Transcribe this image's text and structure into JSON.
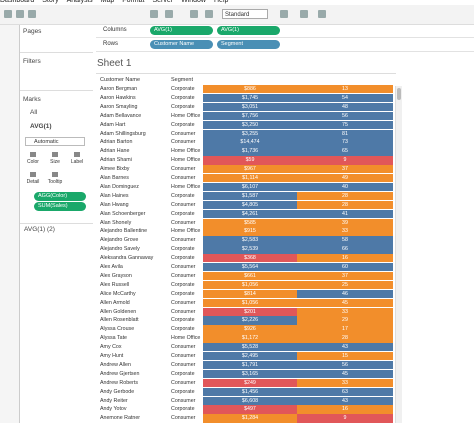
{
  "menu": [
    "Dashboard",
    "Story",
    "Analysis",
    "Map",
    "Format",
    "Server",
    "Window",
    "Help"
  ],
  "toolbar": {
    "mark_size": "Standard"
  },
  "left_panel": {
    "pages": "Pages",
    "filters": "Filters",
    "marks": "Marks",
    "marks_all": "All",
    "marks_card": "AVG(1)",
    "mark_type": "Automatic",
    "buttons": [
      "Color",
      "Size",
      "Label",
      "Detail",
      "Tooltip"
    ],
    "pills": [
      "AGG(Color)",
      "SUM(Sales)"
    ],
    "second_card": "AVG(1) (2)"
  },
  "shelves": {
    "columns_label": "Columns",
    "columns": [
      "AVG(1)",
      "AVG(1)"
    ],
    "rows_label": "Rows",
    "rows": [
      "Customer Name",
      "Segment"
    ]
  },
  "sheet_title": "Sheet 1",
  "table": {
    "headers": [
      "Customer Name",
      "Segment"
    ],
    "colors": {
      "red": "#e15759",
      "orange": "#f28e2b",
      "blue": "#4e79a7"
    },
    "rows": [
      [
        "Aaron Bergman",
        "Corporate",
        "$886",
        "orange",
        "13",
        "orange"
      ],
      [
        "Aaron Hawkins",
        "Corporate",
        "$1,745",
        "blue",
        "54",
        "blue"
      ],
      [
        "Aaron Smayling",
        "Corporate",
        "$3,051",
        "blue",
        "48",
        "blue"
      ],
      [
        "Adam Bellavance",
        "Home Office",
        "$7,756",
        "blue",
        "56",
        "blue"
      ],
      [
        "Adam Hart",
        "Corporate",
        "$3,250",
        "blue",
        "75",
        "blue"
      ],
      [
        "Adam Shillingsburg",
        "Consumer",
        "$3,255",
        "blue",
        "81",
        "blue"
      ],
      [
        "Adrian Barton",
        "Consumer",
        "$14,474",
        "blue",
        "73",
        "blue"
      ],
      [
        "Adrian Hane",
        "Home Office",
        "$1,736",
        "blue",
        "65",
        "blue"
      ],
      [
        "Adrian Shami",
        "Home Office",
        "$59",
        "red",
        "9",
        "red"
      ],
      [
        "Aimee Bixby",
        "Consumer",
        "$967",
        "orange",
        "37",
        "orange"
      ],
      [
        "Alan Barnes",
        "Consumer",
        "$1,114",
        "orange",
        "49",
        "orange"
      ],
      [
        "Alan Dominguez",
        "Home Office",
        "$6,107",
        "blue",
        "40",
        "blue"
      ],
      [
        "Alan Haines",
        "Corporate",
        "$1,587",
        "blue",
        "28",
        "orange"
      ],
      [
        "Alan Hwang",
        "Consumer",
        "$4,805",
        "blue",
        "28",
        "orange"
      ],
      [
        "Alan Schoenberger",
        "Corporate",
        "$4,261",
        "blue",
        "41",
        "blue"
      ],
      [
        "Alan Shonely",
        "Consumer",
        "$585",
        "orange",
        "39",
        "orange"
      ],
      [
        "Alejandro Ballentine",
        "Home Office",
        "$915",
        "orange",
        "33",
        "orange"
      ],
      [
        "Alejandro Grove",
        "Consumer",
        "$2,583",
        "blue",
        "58",
        "blue"
      ],
      [
        "Alejandro Savely",
        "Corporate",
        "$2,539",
        "blue",
        "66",
        "blue"
      ],
      [
        "Aleksandra Gannaway",
        "Corporate",
        "$368",
        "red",
        "16",
        "orange"
      ],
      [
        "Alex Avila",
        "Consumer",
        "$5,564",
        "blue",
        "60",
        "blue"
      ],
      [
        "Alex Grayson",
        "Consumer",
        "$661",
        "orange",
        "37",
        "orange"
      ],
      [
        "Alex Russell",
        "Corporate",
        "$1,056",
        "orange",
        "25",
        "orange"
      ],
      [
        "Alice McCarthy",
        "Corporate",
        "$814",
        "orange",
        "46",
        "blue"
      ],
      [
        "Allen Armold",
        "Consumer",
        "$1,056",
        "orange",
        "45",
        "orange"
      ],
      [
        "Allen Goldenen",
        "Consumer",
        "$201",
        "red",
        "33",
        "orange"
      ],
      [
        "Allen Rosenblatt",
        "Corporate",
        "$2,226",
        "blue",
        "29",
        "orange"
      ],
      [
        "Alyssa Crouse",
        "Corporate",
        "$926",
        "orange",
        "17",
        "orange"
      ],
      [
        "Alyssa Tate",
        "Home Office",
        "$1,172",
        "orange",
        "28",
        "orange"
      ],
      [
        "Amy Cox",
        "Consumer",
        "$5,528",
        "blue",
        "43",
        "blue"
      ],
      [
        "Amy Hunt",
        "Consumer",
        "$2,495",
        "blue",
        "15",
        "orange"
      ],
      [
        "Andrew Allen",
        "Consumer",
        "$1,791",
        "blue",
        "56",
        "blue"
      ],
      [
        "Andrew Gjertsen",
        "Corporate",
        "$3,165",
        "blue",
        "45",
        "blue"
      ],
      [
        "Andrew Roberts",
        "Consumer",
        "$249",
        "red",
        "33",
        "orange"
      ],
      [
        "Andy Gerbode",
        "Corporate",
        "$1,456",
        "blue",
        "63",
        "blue"
      ],
      [
        "Andy Reiter",
        "Consumer",
        "$6,608",
        "blue",
        "43",
        "blue"
      ],
      [
        "Andy Yotov",
        "Corporate",
        "$497",
        "red",
        "16",
        "orange"
      ],
      [
        "Anemone Ratner",
        "Consumer",
        "$1,284",
        "orange",
        "9",
        "red"
      ]
    ]
  }
}
